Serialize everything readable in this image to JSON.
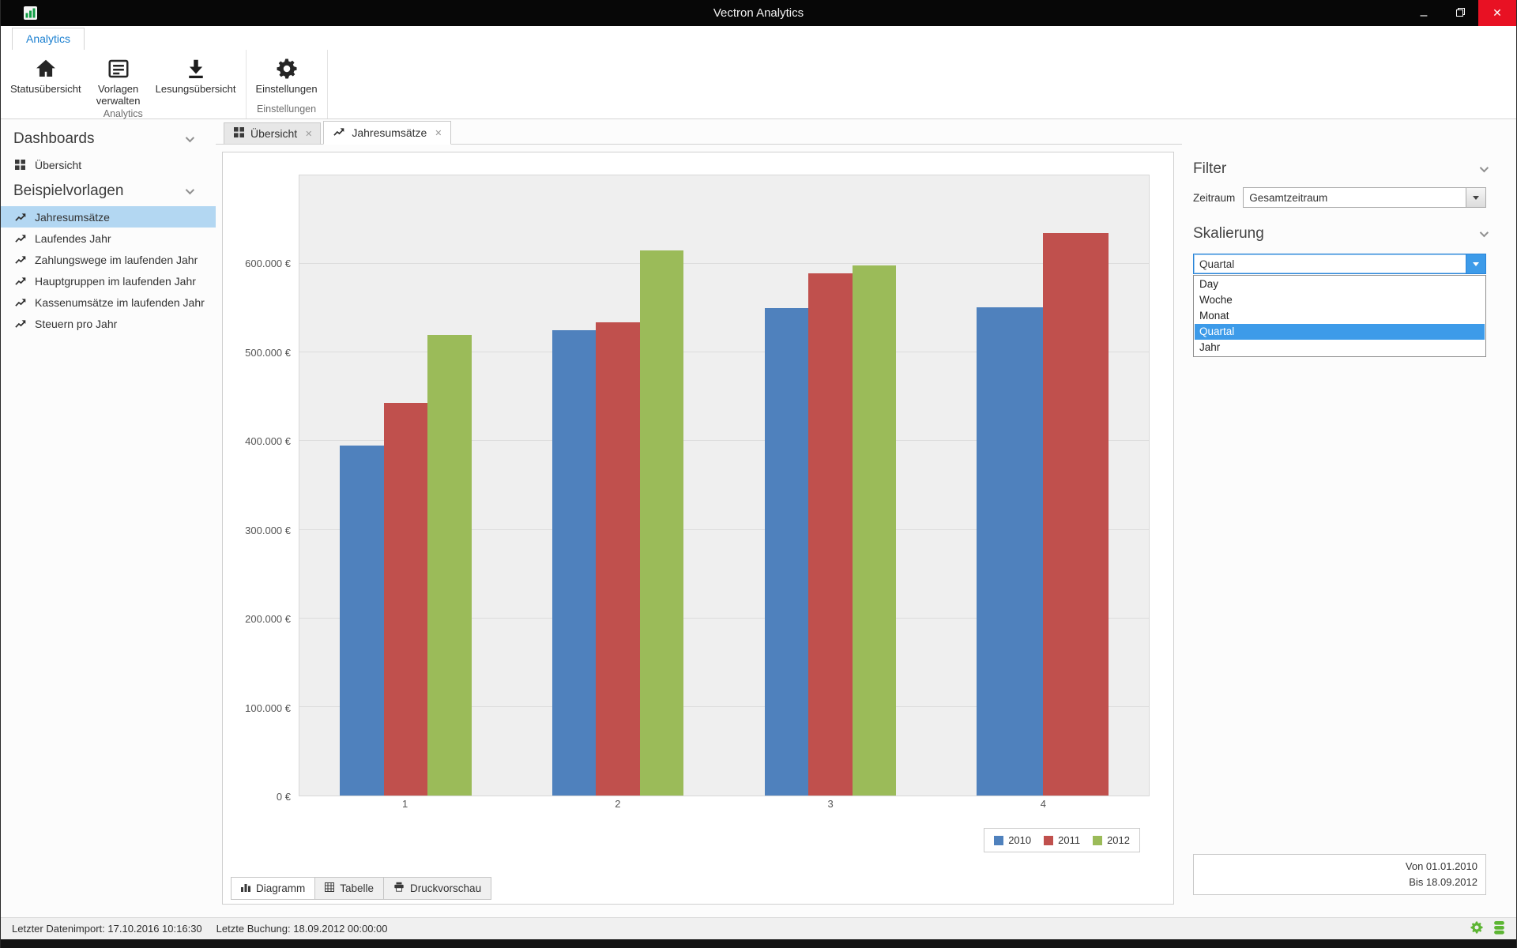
{
  "window": {
    "title": "Vectron Analytics",
    "minimize_glyph": "–",
    "close_glyph": "✕"
  },
  "ribbon": {
    "tab_label": "Analytics",
    "buttons": [
      {
        "label": "Statusübersicht",
        "icon": "home-icon"
      },
      {
        "label": "Vorlagen verwalten",
        "icon": "templates-icon"
      },
      {
        "label": "Lesungsübersicht",
        "icon": "download-icon"
      },
      {
        "label": "Einstellungen",
        "icon": "gear-icon"
      }
    ],
    "groups": [
      "Analytics",
      "Einstellungen"
    ]
  },
  "sidebar": {
    "sections": [
      {
        "title": "Dashboards",
        "items": [
          {
            "label": "Übersicht",
            "icon": "grid-icon",
            "selected": false
          }
        ]
      },
      {
        "title": "Beispielvorlagen",
        "items": [
          {
            "label": "Jahresumsätze",
            "icon": "line-chart-icon",
            "selected": true
          },
          {
            "label": "Laufendes Jahr",
            "icon": "line-chart-icon",
            "selected": false
          },
          {
            "label": "Zahlungswege im laufenden Jahr",
            "icon": "line-chart-icon",
            "selected": false
          },
          {
            "label": "Hauptgruppen im laufenden Jahr",
            "icon": "line-chart-icon",
            "selected": false
          },
          {
            "label": "Kassenumsätze im laufenden Jahr",
            "icon": "line-chart-icon",
            "selected": false
          },
          {
            "label": "Steuern pro Jahr",
            "icon": "line-chart-icon",
            "selected": false
          }
        ]
      }
    ]
  },
  "doc_tabs": [
    {
      "label": "Übersicht",
      "icon": "grid-icon",
      "active": false,
      "close_glyph": "✕"
    },
    {
      "label": "Jahresumsätze",
      "icon": "line-chart-icon",
      "active": true,
      "close_glyph": "✕"
    }
  ],
  "chart_data": {
    "type": "bar",
    "title": "",
    "categories": [
      "1",
      "2",
      "3",
      "4"
    ],
    "series": [
      {
        "name": "2010",
        "color": "#4F81BD",
        "values": [
          395000,
          525000,
          550000,
          551000
        ]
      },
      {
        "name": "2011",
        "color": "#C0504D",
        "values": [
          443000,
          534000,
          589000,
          635000
        ]
      },
      {
        "name": "2012",
        "color": "#9BBB59",
        "values": [
          520000,
          615000,
          598000,
          null
        ]
      }
    ],
    "ylim": [
      0,
      700000
    ],
    "yticks": [
      {
        "value": 0,
        "label": "0 €"
      },
      {
        "value": 100000,
        "label": "100.000 €"
      },
      {
        "value": 200000,
        "label": "200.000 €"
      },
      {
        "value": 300000,
        "label": "300.000 €"
      },
      {
        "value": 400000,
        "label": "400.000 €"
      },
      {
        "value": 500000,
        "label": "500.000 €"
      },
      {
        "value": 600000,
        "label": "600.000 €"
      }
    ],
    "grid": true,
    "legend_position": "bottom-right"
  },
  "view_tabs": [
    {
      "label": "Diagramm",
      "icon": "bar-chart-icon",
      "active": true
    },
    {
      "label": "Tabelle",
      "icon": "table-icon",
      "active": false
    },
    {
      "label": "Druckvorschau",
      "icon": "printer-icon",
      "active": false
    }
  ],
  "filter_panel": {
    "filter_title": "Filter",
    "zeitraum_label": "Zeitraum",
    "zeitraum_value": "Gesamtzeitraum",
    "skalierung_title": "Skalierung",
    "skalierung_value": "Quartal",
    "skalierung_options": [
      {
        "label": "Day",
        "selected": false
      },
      {
        "label": "Woche",
        "selected": false
      },
      {
        "label": "Monat",
        "selected": false
      },
      {
        "label": "Quartal",
        "selected": true
      },
      {
        "label": "Jahr",
        "selected": false
      }
    ],
    "date_range": {
      "from": "Von 01.01.2010",
      "to": "Bis 18.09.2012"
    }
  },
  "statusbar": {
    "import_text": "Letzter Datenimport: 17.10.2016 10:16:30",
    "booking_text": "Letzte Buchung: 18.09.2012 00:00:00"
  },
  "colors": {
    "accent_blue": "#3d9be9",
    "selection_blue": "#b3d7f2",
    "ribbon_tab_blue": "#1a7fd0",
    "close_red": "#e81123",
    "status_icon_green": "#5cb533",
    "bar_2010": "#4F81BD",
    "bar_2011": "#C0504D",
    "bar_2012": "#9BBB59",
    "plot_background": "#efefef"
  }
}
